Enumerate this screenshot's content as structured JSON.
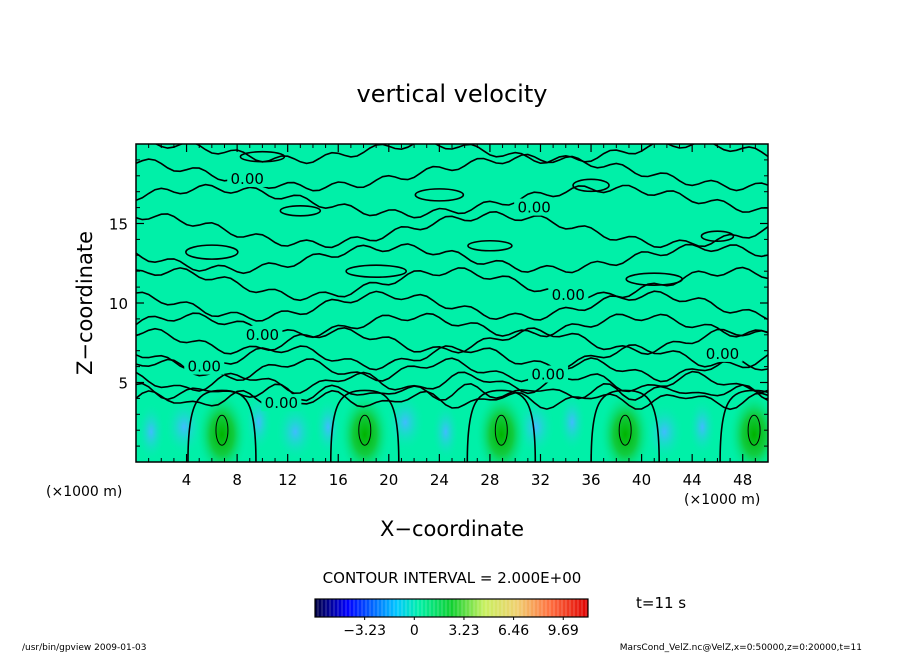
{
  "chart_data": {
    "type": "heatmap",
    "title": "vertical velocity",
    "xlabel": "X−coordinate",
    "ylabel": "Z−coordinate",
    "x_unit_left": "(×1000 m)",
    "x_unit_right": "(×1000 m)",
    "xlim": [
      0,
      50
    ],
    "ylim": [
      0,
      20
    ],
    "x_ticks": [
      4,
      8,
      12,
      16,
      20,
      24,
      28,
      32,
      36,
      40,
      44,
      48
    ],
    "y_ticks": [
      5,
      10,
      15
    ],
    "contour_interval_text": "CONTOUR INTERVAL = 2.000E+00",
    "contour_labels": [
      {
        "text": "0.00",
        "x": 8.8,
        "z": 17.8
      },
      {
        "text": "0.00",
        "x": 31.5,
        "z": 16.0
      },
      {
        "text": "0.00",
        "x": 34.2,
        "z": 10.5
      },
      {
        "text": "0.00",
        "x": 10.0,
        "z": 8.0
      },
      {
        "text": "0.00",
        "x": 5.4,
        "z": 6.0
      },
      {
        "text": "0.00",
        "x": 46.4,
        "z": 6.8
      },
      {
        "text": "0.00",
        "x": 32.6,
        "z": 5.5
      },
      {
        "text": "0.00",
        "x": 11.5,
        "z": 3.7
      }
    ],
    "updraft_columns_x": [
      6.8,
      18.1,
      28.9,
      38.7,
      48.9
    ],
    "colorbar": {
      "ticks": [
        "−3.23",
        "0",
        "3.23",
        "6.46",
        "9.69"
      ],
      "tick_values": [
        -3.23,
        0,
        3.23,
        6.46,
        9.69
      ],
      "range": [
        -6.46,
        11.3
      ]
    },
    "time_label": "t=11  s",
    "footer_left": "/usr/bin/gpview   2009-01-03",
    "footer_right": "MarsCond_VelZ.nc@VelZ,x=0:50000,z=0:20000,t=11",
    "colors": {
      "background_field": "#00f0a8",
      "updraft_core": "#00b800",
      "downdraft": "#50c8ff",
      "contour": "#000000"
    }
  }
}
